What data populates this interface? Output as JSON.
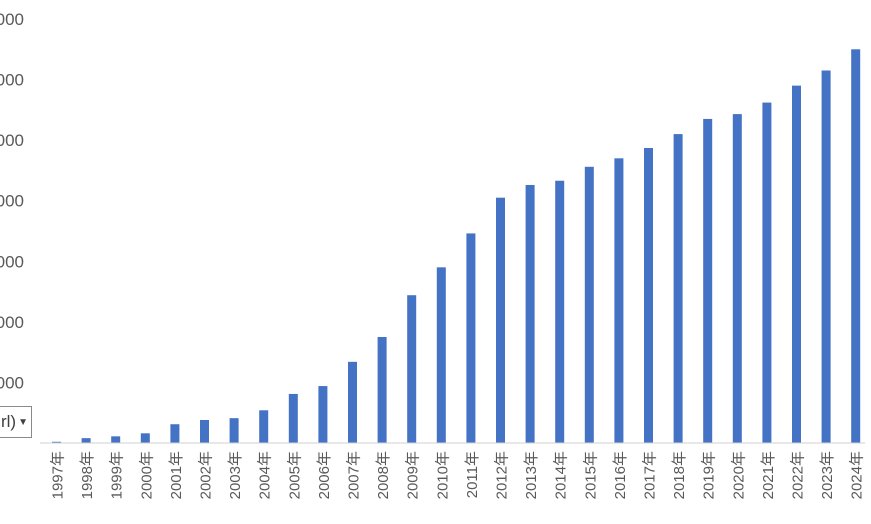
{
  "chart_data": {
    "type": "bar",
    "title": "",
    "xlabel": "",
    "ylabel": "",
    "categories": [
      "1997年",
      "1998年",
      "1999年",
      "2000年",
      "2001年",
      "2002年",
      "2003年",
      "2004年",
      "2005年",
      "2006年",
      "2007年",
      "2008年",
      "2009年",
      "2010年",
      "2011年",
      "2012年",
      "2013年",
      "2014年",
      "2015年",
      "2016年",
      "2017年",
      "2018年",
      "2019年",
      "2020年",
      "2021年",
      "2022年",
      "2023年",
      "2024年"
    ],
    "series": [
      {
        "values": [
          2,
          8,
          11,
          16,
          31,
          38,
          41,
          54,
          81,
          94,
          134,
          175,
          244,
          290,
          346,
          405,
          426,
          433,
          456,
          470,
          487,
          510,
          535,
          543,
          562,
          590,
          615,
          650
        ]
      }
    ],
    "ylim": [
      0,
      700
    ],
    "ytick_labels": [
      "",
      "000",
      "000",
      "000",
      "000",
      "000",
      "000",
      "000"
    ],
    "bar_color": "#4472C4",
    "grid": false,
    "legend": "none"
  },
  "ui": {
    "paste_options_label": "rl)",
    "paste_options_caret": "▼"
  }
}
